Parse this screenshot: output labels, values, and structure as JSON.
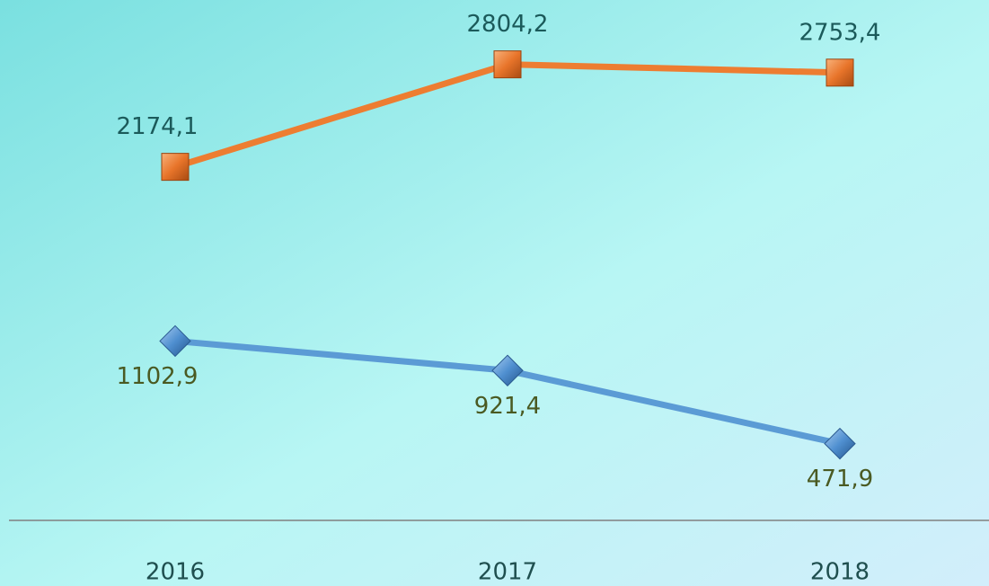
{
  "chart_data": {
    "type": "line",
    "categories": [
      "2016",
      "2017",
      "2018"
    ],
    "series": [
      {
        "color": "#ed7d31",
        "values": [
          2174.1,
          2804.2,
          2753.4
        ],
        "value_labels": [
          "2174,1",
          "2804,2",
          "2753,4"
        ]
      },
      {
        "color": "#5b9bd5",
        "values": [
          1102.9,
          921.4,
          471.9
        ],
        "value_labels": [
          "1102,9",
          "921,4",
          "471,9"
        ]
      }
    ],
    "ylim": [
      0,
      3200
    ]
  }
}
